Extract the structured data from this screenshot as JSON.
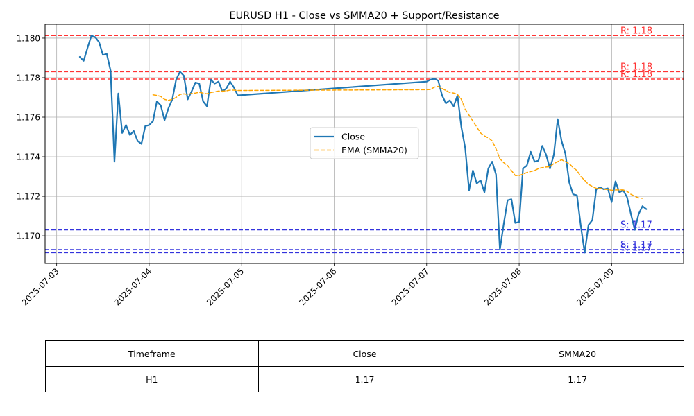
{
  "chart_data": {
    "type": "line",
    "title": "EURUSD H1 - Close vs SMMA20 + Support/Resistance",
    "xlabel": "",
    "ylabel": "",
    "x_tick_labels": [
      "2025-07-03",
      "2025-07-04",
      "2025-07-05",
      "2025-07-06",
      "2025-07-07",
      "2025-07-08",
      "2025-07-09"
    ],
    "y_tick_labels": [
      "1.170",
      "1.172",
      "1.174",
      "1.176",
      "1.178",
      "1.180"
    ],
    "xlim": [
      "2025-07-02 21:00",
      "2025-07-09 18:40"
    ],
    "ylim": [
      1.1686,
      1.1807
    ],
    "grid": true,
    "legend_position": "center-right",
    "colors": {
      "close": "#1f77b4",
      "smma": "#ffa500",
      "resistance": "#ff3333",
      "support": "#3333dd"
    },
    "series": [
      {
        "name": "Close",
        "style": "solid",
        "points": [
          [
            "2025-07-03 06:00",
            1.17905
          ],
          [
            "2025-07-03 07:00",
            1.17885
          ],
          [
            "2025-07-03 08:00",
            1.1795
          ],
          [
            "2025-07-03 09:00",
            1.18012
          ],
          [
            "2025-07-03 10:00",
            1.18005
          ],
          [
            "2025-07-03 11:00",
            1.1798
          ],
          [
            "2025-07-03 12:00",
            1.17915
          ],
          [
            "2025-07-03 13:00",
            1.1792
          ],
          [
            "2025-07-03 14:00",
            1.17835
          ],
          [
            "2025-07-03 15:00",
            1.17375
          ],
          [
            "2025-07-03 16:00",
            1.1772
          ],
          [
            "2025-07-03 17:00",
            1.1752
          ],
          [
            "2025-07-03 18:00",
            1.1756
          ],
          [
            "2025-07-03 19:00",
            1.1751
          ],
          [
            "2025-07-03 20:00",
            1.1753
          ],
          [
            "2025-07-03 21:00",
            1.1748
          ],
          [
            "2025-07-03 22:00",
            1.17465
          ],
          [
            "2025-07-03 23:00",
            1.17555
          ],
          [
            "2025-07-04 00:00",
            1.1756
          ],
          [
            "2025-07-04 01:00",
            1.1758
          ],
          [
            "2025-07-04 02:00",
            1.1768
          ],
          [
            "2025-07-04 03:00",
            1.1766
          ],
          [
            "2025-07-04 04:00",
            1.17585
          ],
          [
            "2025-07-04 05:00",
            1.17645
          ],
          [
            "2025-07-04 06:00",
            1.1769
          ],
          [
            "2025-07-04 07:00",
            1.1779
          ],
          [
            "2025-07-04 08:00",
            1.1783
          ],
          [
            "2025-07-04 09:00",
            1.1781
          ],
          [
            "2025-07-04 10:00",
            1.1769
          ],
          [
            "2025-07-04 11:00",
            1.1773
          ],
          [
            "2025-07-04 12:00",
            1.17775
          ],
          [
            "2025-07-04 13:00",
            1.1777
          ],
          [
            "2025-07-04 14:00",
            1.1768
          ],
          [
            "2025-07-04 15:00",
            1.17655
          ],
          [
            "2025-07-04 16:00",
            1.1779
          ],
          [
            "2025-07-04 17:00",
            1.1777
          ],
          [
            "2025-07-04 18:00",
            1.1778
          ],
          [
            "2025-07-04 19:00",
            1.1773
          ],
          [
            "2025-07-04 20:00",
            1.17745
          ],
          [
            "2025-07-04 21:00",
            1.1778
          ],
          [
            "2025-07-04 22:00",
            1.1775
          ],
          [
            "2025-07-04 23:00",
            1.1771
          ],
          [
            "2025-07-07 00:00",
            1.1778
          ],
          [
            "2025-07-07 01:00",
            1.1779
          ],
          [
            "2025-07-07 02:00",
            1.17795
          ],
          [
            "2025-07-07 03:00",
            1.17785
          ],
          [
            "2025-07-07 04:00",
            1.1771
          ],
          [
            "2025-07-07 05:00",
            1.1767
          ],
          [
            "2025-07-07 06:00",
            1.17685
          ],
          [
            "2025-07-07 07:00",
            1.17655
          ],
          [
            "2025-07-07 08:00",
            1.1771
          ],
          [
            "2025-07-07 09:00",
            1.1755
          ],
          [
            "2025-07-07 10:00",
            1.17445
          ],
          [
            "2025-07-07 11:00",
            1.1723
          ],
          [
            "2025-07-07 12:00",
            1.1733
          ],
          [
            "2025-07-07 13:00",
            1.17265
          ],
          [
            "2025-07-07 14:00",
            1.1728
          ],
          [
            "2025-07-07 15:00",
            1.1722
          ],
          [
            "2025-07-07 16:00",
            1.1734
          ],
          [
            "2025-07-07 17:00",
            1.17375
          ],
          [
            "2025-07-07 18:00",
            1.1731
          ],
          [
            "2025-07-07 19:00",
            1.1693
          ],
          [
            "2025-07-07 20:00",
            1.1706
          ],
          [
            "2025-07-07 21:00",
            1.1718
          ],
          [
            "2025-07-07 22:00",
            1.17185
          ],
          [
            "2025-07-07 23:00",
            1.17065
          ],
          [
            "2025-07-08 00:00",
            1.1707
          ],
          [
            "2025-07-08 01:00",
            1.1734
          ],
          [
            "2025-07-08 02:00",
            1.17355
          ],
          [
            "2025-07-08 03:00",
            1.17425
          ],
          [
            "2025-07-08 04:00",
            1.17375
          ],
          [
            "2025-07-08 05:00",
            1.1738
          ],
          [
            "2025-07-08 06:00",
            1.17455
          ],
          [
            "2025-07-08 07:00",
            1.1741
          ],
          [
            "2025-07-08 08:00",
            1.1734
          ],
          [
            "2025-07-08 09:00",
            1.1741
          ],
          [
            "2025-07-08 10:00",
            1.1759
          ],
          [
            "2025-07-08 11:00",
            1.1748
          ],
          [
            "2025-07-08 12:00",
            1.17415
          ],
          [
            "2025-07-08 13:00",
            1.1727
          ],
          [
            "2025-07-08 14:00",
            1.1721
          ],
          [
            "2025-07-08 15:00",
            1.17205
          ],
          [
            "2025-07-08 16:00",
            1.1705
          ],
          [
            "2025-07-08 17:00",
            1.16915
          ],
          [
            "2025-07-08 18:00",
            1.17055
          ],
          [
            "2025-07-08 19:00",
            1.1708
          ],
          [
            "2025-07-08 20:00",
            1.17235
          ],
          [
            "2025-07-08 21:00",
            1.17245
          ],
          [
            "2025-07-08 22:00",
            1.17235
          ],
          [
            "2025-07-08 23:00",
            1.1724
          ],
          [
            "2025-07-09 00:00",
            1.1717
          ],
          [
            "2025-07-09 01:00",
            1.17275
          ],
          [
            "2025-07-09 02:00",
            1.1722
          ],
          [
            "2025-07-09 03:00",
            1.1723
          ],
          [
            "2025-07-09 04:00",
            1.17195
          ],
          [
            "2025-07-09 05:00",
            1.1711
          ],
          [
            "2025-07-09 06:00",
            1.1703
          ],
          [
            "2025-07-09 07:00",
            1.1711
          ],
          [
            "2025-07-09 08:00",
            1.1715
          ],
          [
            "2025-07-09 09:00",
            1.17135
          ]
        ]
      },
      {
        "name": "EMA (SMMA20)",
        "style": "dashed",
        "points": [
          [
            "2025-07-04 01:00",
            1.17713
          ],
          [
            "2025-07-04 02:00",
            1.1771
          ],
          [
            "2025-07-04 03:00",
            1.17705
          ],
          [
            "2025-07-04 04:00",
            1.1769
          ],
          [
            "2025-07-04 05:00",
            1.17685
          ],
          [
            "2025-07-04 06:00",
            1.1769
          ],
          [
            "2025-07-04 07:00",
            1.177
          ],
          [
            "2025-07-04 08:00",
            1.17715
          ],
          [
            "2025-07-04 09:00",
            1.17718
          ],
          [
            "2025-07-04 10:00",
            1.17715
          ],
          [
            "2025-07-04 11:00",
            1.1772
          ],
          [
            "2025-07-04 12:00",
            1.17722
          ],
          [
            "2025-07-04 13:00",
            1.17726
          ],
          [
            "2025-07-04 14:00",
            1.17722
          ],
          [
            "2025-07-04 15:00",
            1.17718
          ],
          [
            "2025-07-04 16:00",
            1.17725
          ],
          [
            "2025-07-04 17:00",
            1.17728
          ],
          [
            "2025-07-04 18:00",
            1.17732
          ],
          [
            "2025-07-04 19:00",
            1.17732
          ],
          [
            "2025-07-04 20:00",
            1.17733
          ],
          [
            "2025-07-04 21:00",
            1.17737
          ],
          [
            "2025-07-04 22:00",
            1.17737
          ],
          [
            "2025-07-04 23:00",
            1.17735
          ],
          [
            "2025-07-07 00:00",
            1.17739
          ],
          [
            "2025-07-07 01:00",
            1.1774
          ],
          [
            "2025-07-07 02:00",
            1.17752
          ],
          [
            "2025-07-07 03:00",
            1.17756
          ],
          [
            "2025-07-07 04:00",
            1.17745
          ],
          [
            "2025-07-07 05:00",
            1.17735
          ],
          [
            "2025-07-07 06:00",
            1.17725
          ],
          [
            "2025-07-07 07:00",
            1.17722
          ],
          [
            "2025-07-07 08:00",
            1.17715
          ],
          [
            "2025-07-07 09:00",
            1.1769
          ],
          [
            "2025-07-07 10:00",
            1.1764
          ],
          [
            "2025-07-07 11:00",
            1.1761
          ],
          [
            "2025-07-07 12:00",
            1.1758
          ],
          [
            "2025-07-07 13:00",
            1.1755
          ],
          [
            "2025-07-07 14:00",
            1.1752
          ],
          [
            "2025-07-07 15:00",
            1.17505
          ],
          [
            "2025-07-07 16:00",
            1.17495
          ],
          [
            "2025-07-07 17:00",
            1.1748
          ],
          [
            "2025-07-07 18:00",
            1.1744
          ],
          [
            "2025-07-07 19:00",
            1.1739
          ],
          [
            "2025-07-07 20:00",
            1.1737
          ],
          [
            "2025-07-07 21:00",
            1.17355
          ],
          [
            "2025-07-07 22:00",
            1.1733
          ],
          [
            "2025-07-07 23:00",
            1.17305
          ],
          [
            "2025-07-08 00:00",
            1.17305
          ],
          [
            "2025-07-08 01:00",
            1.17312
          ],
          [
            "2025-07-08 02:00",
            1.1732
          ],
          [
            "2025-07-08 03:00",
            1.17325
          ],
          [
            "2025-07-08 04:00",
            1.1733
          ],
          [
            "2025-07-08 05:00",
            1.1734
          ],
          [
            "2025-07-08 06:00",
            1.17345
          ],
          [
            "2025-07-08 07:00",
            1.17348
          ],
          [
            "2025-07-08 08:00",
            1.1735
          ],
          [
            "2025-07-08 09:00",
            1.17365
          ],
          [
            "2025-07-08 10:00",
            1.17375
          ],
          [
            "2025-07-08 11:00",
            1.17385
          ],
          [
            "2025-07-08 12:00",
            1.17375
          ],
          [
            "2025-07-08 13:00",
            1.17365
          ],
          [
            "2025-07-08 14:00",
            1.17345
          ],
          [
            "2025-07-08 15:00",
            1.1733
          ],
          [
            "2025-07-08 16:00",
            1.173
          ],
          [
            "2025-07-08 17:00",
            1.1728
          ],
          [
            "2025-07-08 18:00",
            1.1726
          ],
          [
            "2025-07-08 19:00",
            1.1725
          ],
          [
            "2025-07-08 20:00",
            1.1724
          ],
          [
            "2025-07-08 21:00",
            1.1724
          ],
          [
            "2025-07-08 22:00",
            1.17235
          ],
          [
            "2025-07-08 23:00",
            1.17235
          ],
          [
            "2025-07-09 00:00",
            1.1723
          ],
          [
            "2025-07-09 01:00",
            1.17232
          ],
          [
            "2025-07-09 02:00",
            1.17232
          ],
          [
            "2025-07-09 03:00",
            1.17232
          ],
          [
            "2025-07-09 04:00",
            1.17225
          ],
          [
            "2025-07-09 05:00",
            1.1721
          ],
          [
            "2025-07-09 06:00",
            1.172
          ],
          [
            "2025-07-09 07:00",
            1.17192
          ],
          [
            "2025-07-09 08:00",
            1.1719
          ]
        ]
      }
    ],
    "levels": [
      {
        "type": "resistance",
        "value": 1.18013,
        "label": "R: 1.18"
      },
      {
        "type": "resistance",
        "value": 1.1783,
        "label": "R: 1.18"
      },
      {
        "type": "resistance",
        "value": 1.17793,
        "label": "R: 1.18"
      },
      {
        "type": "support",
        "value": 1.1703,
        "label": "S: 1.17"
      },
      {
        "type": "support",
        "value": 1.1693,
        "label": "S: 1.17"
      },
      {
        "type": "support",
        "value": 1.16915,
        "label": "S: 1.17"
      }
    ]
  },
  "table": {
    "headers": [
      "Timeframe",
      "Close",
      "SMMA20"
    ],
    "rows": [
      [
        "H1",
        "1.17",
        "1.17"
      ]
    ]
  }
}
